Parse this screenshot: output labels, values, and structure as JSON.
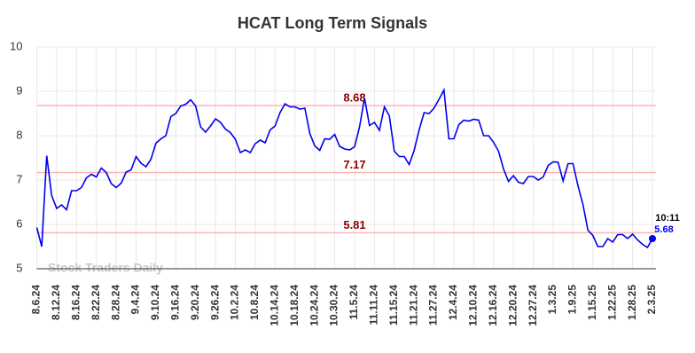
{
  "chart_data": {
    "type": "line",
    "title": "HCAT Long Term Signals",
    "categories": [
      "8.6.24",
      null,
      null,
      null,
      "8.12.24",
      null,
      null,
      null,
      "8.16.24",
      null,
      null,
      null,
      "8.22.24",
      null,
      null,
      null,
      "8.28.24",
      null,
      null,
      null,
      "9.4.24",
      null,
      null,
      null,
      "9.10.24",
      null,
      null,
      null,
      "9.16.24",
      null,
      null,
      null,
      "9.20.24",
      null,
      null,
      null,
      "9.26.24",
      null,
      null,
      null,
      "10.2.24",
      null,
      null,
      null,
      "10.8.24",
      null,
      null,
      null,
      "10.14.24",
      null,
      null,
      null,
      "10.18.24",
      null,
      null,
      null,
      "10.24.24",
      null,
      null,
      null,
      "10.30.24",
      null,
      null,
      null,
      "11.5.24",
      null,
      null,
      null,
      "11.11.24",
      null,
      null,
      null,
      "11.15.24",
      null,
      null,
      null,
      "11.21.24",
      null,
      null,
      null,
      "11.27.24",
      null,
      null,
      null,
      "12.4.24",
      null,
      null,
      null,
      "12.10.24",
      null,
      null,
      null,
      "12.16.24",
      null,
      null,
      null,
      "12.20.24",
      null,
      null,
      null,
      "12.27.24",
      null,
      null,
      null,
      "1.3.25",
      null,
      null,
      null,
      "1.9.25",
      null,
      null,
      null,
      "1.15.25",
      null,
      null,
      null,
      "1.22.25",
      null,
      null,
      null,
      "1.28.25",
      null,
      null,
      null,
      "2.3.25"
    ],
    "values": [
      5.93,
      5.5,
      7.55,
      6.65,
      6.36,
      6.44,
      6.33,
      6.76,
      6.76,
      6.83,
      7.05,
      7.13,
      7.07,
      7.27,
      7.17,
      6.92,
      6.83,
      6.93,
      7.18,
      7.23,
      7.53,
      7.38,
      7.3,
      7.47,
      7.83,
      7.93,
      8.0,
      8.43,
      8.5,
      8.67,
      8.71,
      8.81,
      8.67,
      8.2,
      8.08,
      8.22,
      8.38,
      8.3,
      8.15,
      8.07,
      7.92,
      7.62,
      7.68,
      7.62,
      7.82,
      7.9,
      7.84,
      8.13,
      8.22,
      8.52,
      8.72,
      8.65,
      8.65,
      8.6,
      8.62,
      8.05,
      7.77,
      7.67,
      7.93,
      7.92,
      8.03,
      7.76,
      7.7,
      7.68,
      7.75,
      8.2,
      8.85,
      8.23,
      8.3,
      8.12,
      8.65,
      8.45,
      7.65,
      7.53,
      7.53,
      7.35,
      7.67,
      8.13,
      8.52,
      8.5,
      8.62,
      8.82,
      9.03,
      7.93,
      7.93,
      8.25,
      8.35,
      8.33,
      8.37,
      8.35,
      8.0,
      8.0,
      7.85,
      7.65,
      7.25,
      6.97,
      7.1,
      6.95,
      6.92,
      7.08,
      7.08,
      7.0,
      7.07,
      7.33,
      7.41,
      7.4,
      6.98,
      7.37,
      7.37,
      6.87,
      6.45,
      5.87,
      5.75,
      5.5,
      5.5,
      5.68,
      5.6,
      5.77,
      5.77,
      5.68,
      5.78,
      5.65,
      5.55,
      5.48,
      5.68
    ],
    "color": "#0000ee",
    "hlines": [
      8.68,
      7.17,
      5.81
    ],
    "hline_color": "#ffb3b3",
    "hline_label_color": "#8b0000",
    "last_time": "10:11",
    "watermark": "Stock Traders Daily",
    "ylim": [
      5,
      10
    ],
    "yticks": [
      5,
      6,
      7,
      8,
      9,
      10
    ],
    "grid": true
  }
}
